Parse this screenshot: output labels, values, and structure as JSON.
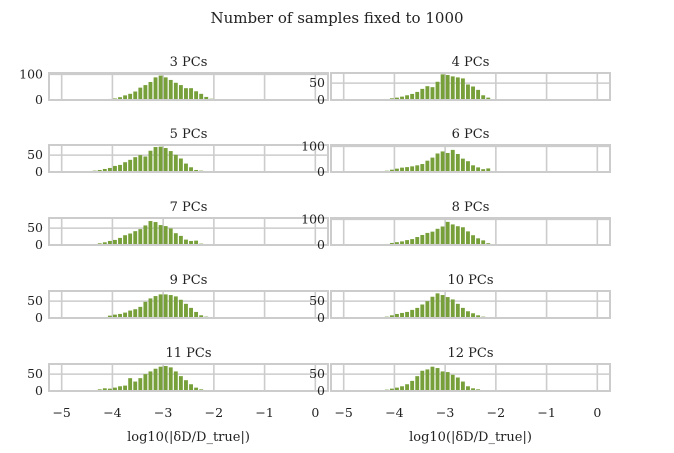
{
  "figure_title": "Number of samples fixed to 1000",
  "colors": {
    "below_threshold": "#77a03a",
    "above_threshold": "#d06a6a",
    "frame": "#cccccc",
    "grid": "#cccccc"
  },
  "chart_data": {
    "type": "bar",
    "title": "Number of samples fixed to 1000",
    "xlabel": "log10(|δD/D_true|)",
    "xlim": [
      -5.25,
      0.25
    ],
    "x_ticks": [
      -5,
      -4,
      -3,
      -2,
      -1,
      0
    ],
    "x_tick_labels": [
      "−5",
      "−4",
      "−3",
      "−2",
      "−1",
      "0"
    ],
    "bin_width": 0.1,
    "color_threshold_x": -1.9,
    "panels": [
      {
        "title": "3 PCs",
        "ylim": [
          0,
          105
        ],
        "y_ticks": [
          0,
          100
        ],
        "y_tick_labels": [
          "0",
          "100"
        ],
        "bin_start": -4.4,
        "values": [
          1,
          2,
          3,
          4,
          6,
          11,
          18,
          24,
          33,
          48,
          58,
          70,
          88,
          95,
          88,
          78,
          67,
          58,
          46,
          46,
          34,
          24,
          12,
          5,
          2,
          1
        ]
      },
      {
        "title": "4 PCs",
        "ylim": [
          0,
          80
        ],
        "y_ticks": [
          0,
          50
        ],
        "y_tick_labels": [
          "0",
          "50"
        ],
        "bin_start": -4.3,
        "values": [
          1,
          3,
          5,
          7,
          10,
          14,
          18,
          24,
          33,
          41,
          38,
          54,
          76,
          74,
          70,
          67,
          64,
          46,
          40,
          30,
          14,
          7,
          3,
          2
        ]
      },
      {
        "title": "5 PCs",
        "ylim": [
          0,
          80
        ],
        "y_ticks": [
          0,
          50
        ],
        "y_tick_labels": [
          "0",
          "50"
        ],
        "bin_start": -4.6,
        "values": [
          1,
          2,
          4,
          6,
          9,
          12,
          18,
          21,
          29,
          36,
          44,
          50,
          46,
          63,
          74,
          75,
          71,
          62,
          51,
          40,
          25,
          14,
          6,
          4,
          2
        ]
      },
      {
        "title": "6 PCs",
        "ylim": [
          0,
          105
        ],
        "y_ticks": [
          0,
          100
        ],
        "y_tick_labels": [
          "0",
          "100"
        ],
        "bin_start": -4.3,
        "values": [
          2,
          5,
          9,
          13,
          17,
          19,
          22,
          26,
          31,
          44,
          56,
          72,
          80,
          74,
          86,
          70,
          52,
          42,
          26,
          18,
          11,
          14,
          4,
          2
        ]
      },
      {
        "title": "7 PCs",
        "ylim": [
          0,
          80
        ],
        "y_ticks": [
          0,
          50
        ],
        "y_tick_labels": [
          "0",
          "50"
        ],
        "bin_start": -4.5,
        "values": [
          2,
          3,
          5,
          8,
          12,
          15,
          21,
          29,
          34,
          41,
          47,
          58,
          71,
          68,
          59,
          56,
          49,
          35,
          27,
          16,
          12,
          13,
          4
        ]
      },
      {
        "title": "8 PCs",
        "ylim": [
          0,
          105
        ],
        "y_ticks": [
          0,
          100
        ],
        "y_tick_labels": [
          "0",
          "100"
        ],
        "bin_start": -4.3,
        "values": [
          1,
          4,
          8,
          11,
          14,
          19,
          23,
          31,
          39,
          47,
          52,
          63,
          72,
          90,
          80,
          73,
          69,
          53,
          38,
          26,
          18,
          7,
          3,
          2
        ]
      },
      {
        "title": "9 PCs",
        "ylim": [
          0,
          80
        ],
        "y_ticks": [
          0,
          50
        ],
        "y_tick_labels": [
          "0",
          "50"
        ],
        "bin_start": -4.3,
        "values": [
          1,
          3,
          7,
          10,
          12,
          16,
          22,
          26,
          33,
          48,
          58,
          65,
          70,
          70,
          68,
          64,
          54,
          42,
          30,
          18,
          8,
          4,
          2
        ]
      },
      {
        "title": "10 PCs",
        "ylim": [
          0,
          80
        ],
        "y_ticks": [
          0,
          50
        ],
        "y_tick_labels": [
          "0",
          "50"
        ],
        "bin_start": -4.3,
        "values": [
          2,
          4,
          8,
          12,
          15,
          18,
          24,
          30,
          40,
          50,
          63,
          73,
          68,
          62,
          55,
          42,
          30,
          20,
          14,
          8,
          4,
          2
        ]
      },
      {
        "title": "11 PCs",
        "ylim": [
          0,
          80
        ],
        "y_ticks": [
          0,
          50
        ],
        "y_tick_labels": [
          "0",
          "50"
        ],
        "bin_start": -4.5,
        "values": [
          1,
          3,
          5,
          8,
          7,
          10,
          14,
          16,
          38,
          28,
          38,
          50,
          58,
          66,
          72,
          74,
          70,
          58,
          44,
          32,
          20,
          10,
          5,
          2
        ]
      },
      {
        "title": "12 PCs",
        "ylim": [
          0,
          80
        ],
        "y_ticks": [
          0,
          50
        ],
        "y_tick_labels": [
          "0",
          "50"
        ],
        "bin_start": -4.3,
        "values": [
          2,
          4,
          7,
          10,
          14,
          20,
          30,
          44,
          60,
          64,
          72,
          68,
          58,
          56,
          48,
          40,
          28,
          14,
          8,
          5,
          2
        ]
      }
    ]
  }
}
